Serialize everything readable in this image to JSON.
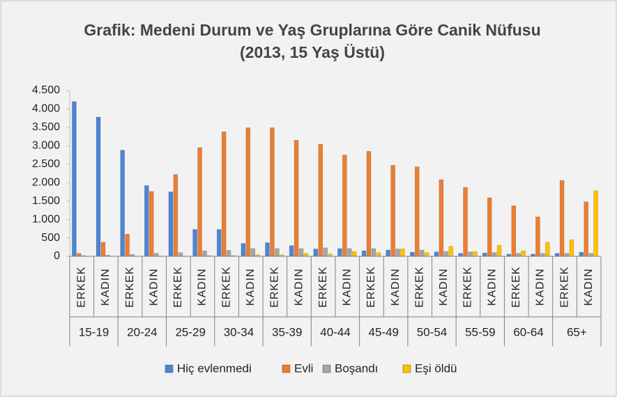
{
  "chart_data": {
    "type": "bar",
    "title": "Grafik: Medeni Durum ve Yaş Gruplarına Göre Canik Nüfusu",
    "subtitle": "(2013, 15 Yaş Üstü)",
    "groups": [
      "15-19",
      "20-24",
      "25-29",
      "30-34",
      "35-39",
      "40-44",
      "45-49",
      "50-54",
      "55-59",
      "60-64",
      "65+"
    ],
    "categories": [
      "ERKEK",
      "KADIN",
      "ERKEK",
      "KADIN",
      "ERKEK",
      "KADIN",
      "ERKEK",
      "KADIN",
      "ERKEK",
      "KADIN",
      "ERKEK",
      "KADIN",
      "ERKEK",
      "KADIN",
      "ERKEK",
      "KADIN",
      "ERKEK",
      "KADIN",
      "ERKEK",
      "KADIN",
      "ERKEK",
      "KADIN"
    ],
    "series": [
      {
        "name": "Hiç evlenmedi",
        "color": "#4a86d4",
        "values": [
          4200,
          3780,
          2880,
          1920,
          1750,
          730,
          730,
          350,
          370,
          290,
          200,
          210,
          150,
          170,
          110,
          120,
          80,
          90,
          60,
          60,
          80,
          110
        ]
      },
      {
        "name": "Evli",
        "color": "#ed7d31",
        "values": [
          80,
          380,
          600,
          1760,
          2220,
          2950,
          3380,
          3490,
          3490,
          3150,
          3040,
          2750,
          2850,
          2470,
          2430,
          2080,
          1870,
          1590,
          1370,
          1070,
          2060,
          1480
        ]
      },
      {
        "name": "Boşandı",
        "color": "#a5a5a5",
        "values": [
          20,
          30,
          50,
          80,
          100,
          150,
          160,
          210,
          210,
          210,
          230,
          210,
          210,
          200,
          170,
          130,
          120,
          100,
          80,
          80,
          80,
          80
        ]
      },
      {
        "name": "Eşi öldü",
        "color": "#ffc000",
        "values": [
          0,
          5,
          5,
          10,
          10,
          20,
          20,
          40,
          40,
          80,
          60,
          130,
          100,
          200,
          100,
          270,
          130,
          300,
          150,
          380,
          450,
          1780
        ]
      }
    ],
    "ylim": [
      0,
      4500
    ],
    "yticks": [
      0,
      500,
      {
        "value": 1000,
        "label": "1.000"
      },
      {
        "value": 1500,
        "label": "1.500"
      },
      {
        "value": 2000,
        "label": "2.000"
      },
      {
        "value": 2500,
        "label": "2.500"
      },
      {
        "value": 3000,
        "label": "3.000"
      },
      {
        "value": 3500,
        "label": "3.500"
      },
      {
        "value": 4000,
        "label": "4.000"
      },
      {
        "value": 4500,
        "label": "4.500"
      }
    ],
    "grid": false,
    "legend": "bottom"
  }
}
